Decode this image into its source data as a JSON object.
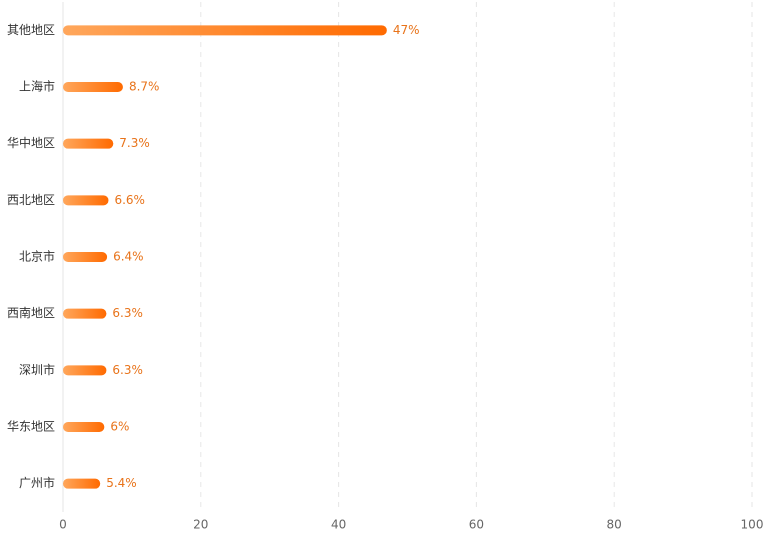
{
  "chart_data": {
    "type": "hbar",
    "categories": [
      "其他地区",
      "上海市",
      "华中地区",
      "西北地区",
      "北京市",
      "西南地区",
      "深圳市",
      "华东地区",
      "广州市"
    ],
    "values": [
      47,
      8.7,
      7.3,
      6.6,
      6.4,
      6.3,
      6.3,
      6,
      5.4
    ],
    "value_labels": [
      "47%",
      "8.7%",
      "7.3%",
      "6.6%",
      "6.4%",
      "6.3%",
      "6.3%",
      "6%",
      "5.4%"
    ],
    "colors": [
      "#ffa75c",
      "#ff6a00"
    ],
    "label_color": "#e8731a",
    "xlim": [
      0,
      100
    ],
    "xticks": [
      0,
      20,
      40,
      60,
      80,
      100
    ],
    "grid": true
  }
}
